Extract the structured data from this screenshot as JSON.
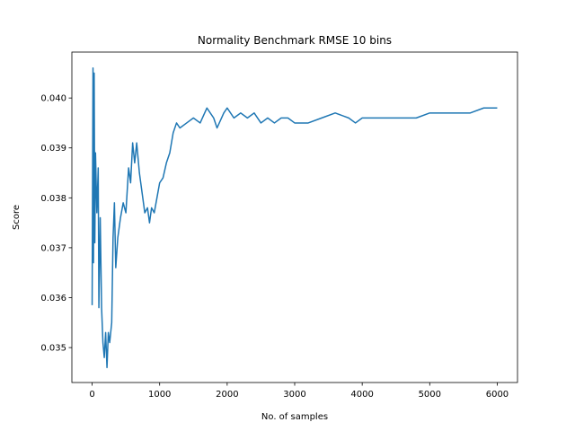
{
  "chart_data": {
    "type": "line",
    "title": "Normality Benchmark RMSE 10 bins",
    "x_label": "No. of samples",
    "y_label": "Score",
    "x": [
      0,
      13,
      20,
      30,
      40,
      50,
      70,
      90,
      100,
      120,
      140,
      160,
      180,
      200,
      220,
      240,
      260,
      290,
      310,
      330,
      350,
      380,
      420,
      460,
      500,
      540,
      570,
      600,
      630,
      660,
      700,
      740,
      780,
      820,
      850,
      880,
      920,
      960,
      1000,
      1050,
      1100,
      1150,
      1200,
      1250,
      1300,
      1400,
      1500,
      1600,
      1700,
      1800,
      1850,
      1950,
      2000,
      2100,
      2200,
      2300,
      2400,
      2500,
      2600,
      2700,
      2800,
      2900,
      3000,
      3200,
      3400,
      3600,
      3800,
      3900,
      4000,
      4200,
      4400,
      4600,
      4800,
      5000,
      5200,
      5400,
      5600,
      5800,
      6000
    ],
    "series": [
      {
        "name": "Score",
        "color": "#1f77b4",
        "values": [
          0.03585,
          0.0406,
          0.0367,
          0.0405,
          0.0371,
          0.0389,
          0.0377,
          0.0386,
          0.0358,
          0.0376,
          0.0358,
          0.0351,
          0.0348,
          0.0353,
          0.0346,
          0.0353,
          0.0351,
          0.0355,
          0.0372,
          0.0379,
          0.0366,
          0.0372,
          0.0376,
          0.0379,
          0.0377,
          0.0386,
          0.0383,
          0.0391,
          0.0387,
          0.0391,
          0.0385,
          0.0381,
          0.0377,
          0.0378,
          0.0375,
          0.0378,
          0.0377,
          0.038,
          0.0383,
          0.0384,
          0.0387,
          0.0389,
          0.0393,
          0.0395,
          0.0394,
          0.0395,
          0.0396,
          0.0395,
          0.0398,
          0.0396,
          0.0394,
          0.0397,
          0.0398,
          0.0396,
          0.0397,
          0.0396,
          0.0397,
          0.0395,
          0.0396,
          0.0395,
          0.0396,
          0.0396,
          0.0395,
          0.0395,
          0.0396,
          0.0397,
          0.0396,
          0.0395,
          0.0396,
          0.0396,
          0.0396,
          0.0396,
          0.0396,
          0.0397,
          0.0397,
          0.0397,
          0.0397,
          0.0398,
          0.0398
        ]
      }
    ],
    "xlim": [
      -300,
      6300
    ],
    "xticks": [
      0,
      1000,
      2000,
      3000,
      4000,
      5000,
      6000
    ],
    "ylim": [
      0.0343,
      0.04092
    ],
    "yticks": [
      0.035,
      0.036,
      0.037,
      0.038,
      0.039,
      {
        "value": 0.04,
        "label": "0.040"
      }
    ]
  }
}
